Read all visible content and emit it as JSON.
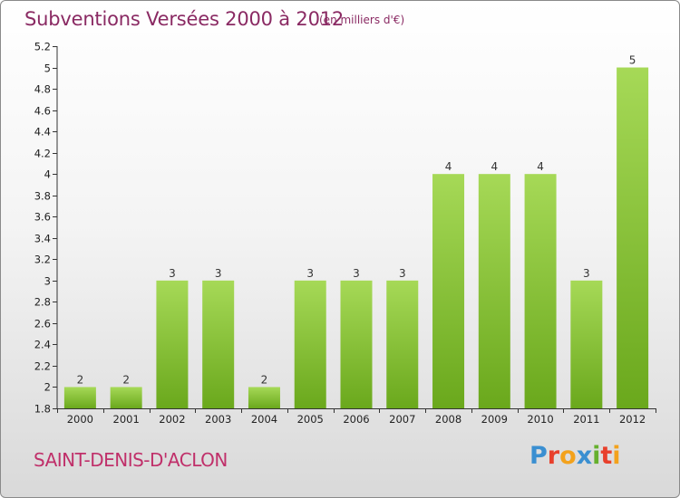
{
  "header": {
    "title": "Subventions Versées 2000 à 2012",
    "subtitle": "(en milliers d'€)"
  },
  "footer": {
    "commune": "SAINT-DENIS-D'ACLON",
    "logo_text": "Proxiti",
    "logo_colors": [
      "#3a8fd1",
      "#e8402c",
      "#f3a21c",
      "#3a8fd1",
      "#66b02e",
      "#e8402c",
      "#f3a21c"
    ]
  },
  "colors": {
    "bar_light": "#a6d957",
    "bar_dark": "#6aa81c",
    "axis": "#333333",
    "grid": "#cccccc",
    "title": "#8a2a63",
    "commune": "#c0306a"
  },
  "chart_data": {
    "type": "bar",
    "title": "Subventions Versées 2000 à 2012",
    "subtitle": "(en milliers d'€)",
    "xlabel": "",
    "ylabel": "",
    "categories": [
      "2000",
      "2001",
      "2002",
      "2003",
      "2004",
      "2005",
      "2006",
      "2007",
      "2008",
      "2009",
      "2010",
      "2011",
      "2012"
    ],
    "values": [
      2,
      2,
      3,
      3,
      2,
      3,
      3,
      3,
      4,
      4,
      4,
      3,
      5
    ],
    "ylim": [
      1.8,
      5.2
    ],
    "yticks": [
      "1.8",
      "2",
      "2.2",
      "2.4",
      "2.6",
      "2.8",
      "3",
      "3.2",
      "3.4",
      "3.6",
      "3.8",
      "4",
      "4.2",
      "4.4",
      "4.6",
      "4.8",
      "5",
      "5.2"
    ],
    "ytick_values": [
      1.8,
      2.0,
      2.2,
      2.4,
      2.6,
      2.8,
      3.0,
      3.2,
      3.4,
      3.6,
      3.8,
      4.0,
      4.2,
      4.4,
      4.6,
      4.8,
      5.0,
      5.2
    ],
    "grid": false,
    "legend": "none"
  }
}
